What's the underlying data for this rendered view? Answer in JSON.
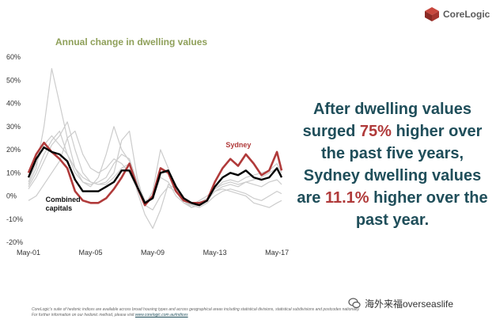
{
  "brand": {
    "name": "CoreLogic"
  },
  "headline": {
    "part1": "After dwelling values surged ",
    "pct1": "75%",
    "part2": " higher over the past five years, Sydney dwelling values  are ",
    "pct2": "11.1%",
    "part3": " higher over the past year."
  },
  "footnote": {
    "text": "CoreLogic's suite of hedonic indices are available across broad housing types and across geographical areas including statistical divisions, statistical subdivisions and postcodes nationally.  For further information on our hedonic method, please visit",
    "link": "www.corelogic.com.au/indices"
  },
  "watermark": {
    "text": "海外来福overseaslife"
  },
  "colors": {
    "title": "#8fa05a",
    "sydney": "#b03a3a",
    "combined": "#000000",
    "others": "#cccccc",
    "headline": "#1f4e5a"
  },
  "chart_data": {
    "type": "line",
    "title": "Annual change in dwelling values",
    "xlabel": "",
    "ylabel": "",
    "x_ticks": [
      "May-01",
      "May-05",
      "May-09",
      "May-13",
      "May-17"
    ],
    "y_ticks": [
      "60%",
      "50%",
      "40%",
      "30%",
      "20%",
      "10%",
      "0%",
      "-10%",
      "-20%"
    ],
    "ylim": [
      -20,
      60
    ],
    "xlim": [
      2001.0,
      2017.3
    ],
    "grid": false,
    "annotations": [
      {
        "text": "Sydney",
        "series": "Sydney"
      },
      {
        "text": "Combined capitals",
        "series": "Combined capitals"
      }
    ],
    "series": [
      {
        "name": "Combined capitals",
        "x": [
          2001.0,
          2001.5,
          2002.0,
          2002.5,
          2003.0,
          2003.5,
          2004.0,
          2004.5,
          2005.0,
          2005.5,
          2006.0,
          2006.5,
          2007.0,
          2007.5,
          2008.0,
          2008.5,
          2009.0,
          2009.5,
          2010.0,
          2010.5,
          2011.0,
          2011.5,
          2012.0,
          2012.5,
          2013.0,
          2013.5,
          2014.0,
          2014.5,
          2015.0,
          2015.5,
          2016.0,
          2016.5,
          2017.0,
          2017.3
        ],
        "values": [
          8,
          16,
          21,
          19,
          18,
          15,
          7,
          2,
          2,
          2,
          4,
          6,
          11,
          11,
          4,
          -3,
          -1,
          10,
          11,
          4,
          -1,
          -3,
          -4,
          -2,
          4,
          8,
          10,
          9,
          11,
          8,
          7,
          8,
          12,
          8
        ]
      },
      {
        "name": "Sydney",
        "x": [
          2001.0,
          2001.5,
          2002.0,
          2002.5,
          2003.0,
          2003.5,
          2004.0,
          2004.5,
          2005.0,
          2005.5,
          2006.0,
          2006.5,
          2007.0,
          2007.5,
          2008.0,
          2008.5,
          2009.0,
          2009.5,
          2010.0,
          2010.5,
          2011.0,
          2011.5,
          2012.0,
          2012.5,
          2013.0,
          2013.5,
          2014.0,
          2014.5,
          2015.0,
          2015.5,
          2016.0,
          2016.5,
          2017.0,
          2017.3
        ],
        "values": [
          10,
          18,
          23,
          19,
          16,
          12,
          2,
          -2,
          -3,
          -3,
          -1,
          3,
          8,
          14,
          4,
          -4,
          0,
          12,
          10,
          2,
          -2,
          -3,
          -3,
          -2,
          6,
          12,
          16,
          13,
          18,
          14,
          9,
          11,
          19,
          11
        ]
      },
      {
        "name": "",
        "x": [
          2001.0,
          2001.5,
          2002.0,
          2002.5,
          2003.0,
          2003.5,
          2004.0,
          2004.5,
          2005.0,
          2005.5,
          2006.0,
          2006.5,
          2007.0,
          2007.5,
          2008.0,
          2008.5,
          2009.0,
          2009.5,
          2010.0,
          2010.5,
          2011.0,
          2011.5,
          2012.0,
          2012.5,
          2013.0,
          2013.5,
          2014.0,
          2014.5,
          2015.0,
          2015.5,
          2016.0,
          2016.5,
          2017.0,
          2017.3
        ],
        "values": [
          5,
          12,
          30,
          55,
          40,
          25,
          12,
          6,
          4,
          8,
          18,
          30,
          20,
          15,
          2,
          -8,
          -14,
          -6,
          5,
          3,
          -2,
          -5,
          -4,
          -2,
          2,
          3,
          2,
          1,
          0,
          -3,
          -4,
          -5,
          -3,
          -2
        ]
      },
      {
        "name": "",
        "x": [
          2001.0,
          2001.5,
          2002.0,
          2002.5,
          2003.0,
          2003.5,
          2004.0,
          2004.5,
          2005.0,
          2005.5,
          2006.0,
          2006.5,
          2007.0,
          2007.5,
          2008.0,
          2008.5,
          2009.0,
          2009.5,
          2010.0,
          2010.5,
          2011.0,
          2011.5,
          2012.0,
          2012.5,
          2013.0,
          2013.5,
          2014.0,
          2014.5,
          2015.0,
          2015.5,
          2016.0,
          2016.5,
          2017.0,
          2017.3
        ],
        "values": [
          3,
          8,
          15,
          22,
          26,
          32,
          20,
          10,
          6,
          5,
          6,
          10,
          24,
          28,
          8,
          -4,
          2,
          20,
          12,
          2,
          -3,
          -4,
          -2,
          0,
          3,
          5,
          6,
          5,
          6,
          5,
          4,
          6,
          7,
          5
        ]
      },
      {
        "name": "",
        "x": [
          2001.0,
          2001.5,
          2002.0,
          2002.5,
          2003.0,
          2003.5,
          2004.0,
          2004.5,
          2005.0,
          2005.5,
          2006.0,
          2006.5,
          2007.0,
          2007.5,
          2008.0,
          2008.5,
          2009.0,
          2009.5,
          2010.0,
          2010.5,
          2011.0,
          2011.5,
          2012.0,
          2012.5,
          2013.0,
          2013.5,
          2014.0,
          2014.5,
          2015.0,
          2015.5,
          2016.0,
          2016.5,
          2017.0,
          2017.3
        ],
        "values": [
          4,
          10,
          18,
          24,
          28,
          18,
          10,
          6,
          5,
          6,
          8,
          14,
          18,
          16,
          6,
          -2,
          -1,
          8,
          6,
          0,
          -3,
          -5,
          -3,
          -1,
          2,
          4,
          5,
          4,
          6,
          7,
          8,
          10,
          12,
          9
        ]
      },
      {
        "name": "",
        "x": [
          2001.0,
          2001.5,
          2002.0,
          2002.5,
          2003.0,
          2003.5,
          2004.0,
          2004.5,
          2005.0,
          2005.5,
          2006.0,
          2006.5,
          2007.0,
          2007.5,
          2008.0,
          2008.5,
          2009.0,
          2009.5,
          2010.0,
          2010.5,
          2011.0,
          2011.5,
          2012.0,
          2012.5,
          2013.0,
          2013.5,
          2014.0,
          2014.5,
          2015.0,
          2015.5,
          2016.0,
          2016.5,
          2017.0,
          2017.3
        ],
        "values": [
          -2,
          0,
          5,
          10,
          15,
          25,
          28,
          18,
          12,
          10,
          12,
          16,
          14,
          10,
          3,
          -4,
          -6,
          0,
          4,
          2,
          -1,
          -4,
          -5,
          -3,
          0,
          2,
          3,
          2,
          1,
          -1,
          -2,
          0,
          2,
          1
        ]
      },
      {
        "name": "",
        "x": [
          2001.0,
          2001.5,
          2002.0,
          2002.5,
          2003.0,
          2003.5,
          2004.0,
          2004.5,
          2005.0,
          2005.5,
          2006.0,
          2006.5,
          2007.0,
          2007.5,
          2008.0,
          2008.5,
          2009.0,
          2009.5,
          2010.0,
          2010.5,
          2011.0,
          2011.5,
          2012.0,
          2012.5,
          2013.0,
          2013.5,
          2014.0,
          2014.5,
          2015.0,
          2015.5,
          2016.0,
          2016.5,
          2017.0,
          2017.3
        ],
        "values": [
          6,
          14,
          22,
          26,
          22,
          18,
          12,
          8,
          6,
          5,
          5,
          8,
          12,
          14,
          6,
          -2,
          -1,
          10,
          10,
          3,
          -2,
          -4,
          -3,
          -1,
          3,
          6,
          7,
          6,
          8,
          9,
          10,
          11,
          14,
          10
        ]
      }
    ]
  }
}
